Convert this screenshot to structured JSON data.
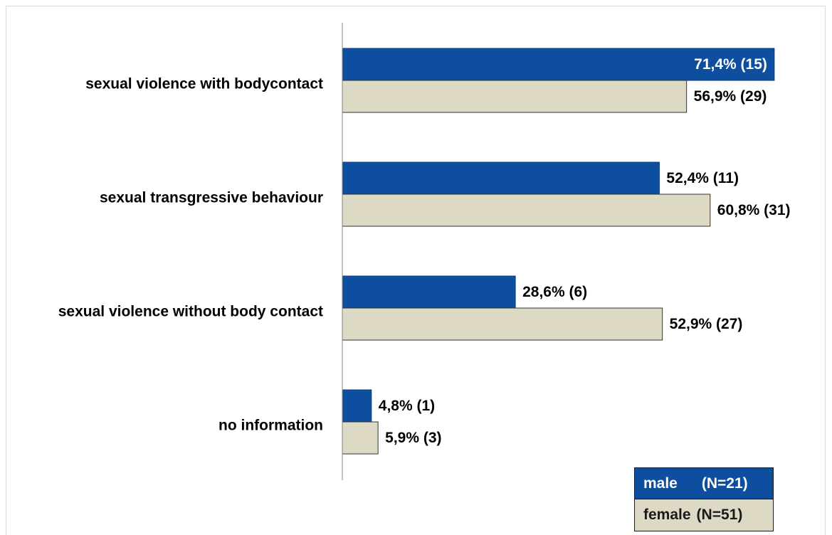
{
  "chart_data": {
    "type": "bar",
    "orientation": "horizontal",
    "categories": [
      "sexual violence with bodycontact",
      "sexual transgressive behaviour",
      "sexual violence without body contact",
      "no information"
    ],
    "series": [
      {
        "name": "male",
        "n_label": "(N=21)",
        "values": [
          71.4,
          52.4,
          28.6,
          4.8
        ],
        "labels": [
          "71,4% (15)",
          "52,4% (11)",
          "28,6% (6)",
          "4,8% (1)"
        ],
        "color": "#0d4f9e"
      },
      {
        "name": "female",
        "n_label": "(N=51)",
        "values": [
          56.9,
          60.8,
          52.9,
          5.9
        ],
        "labels": [
          "56,9% (29)",
          "60,8% (31)",
          "52,9% (27)",
          "5,9% (3)"
        ],
        "color": "#ddd9c4"
      }
    ],
    "xlim": [
      0,
      100
    ],
    "grid": false,
    "legend_position": "bottom-right",
    "title": "",
    "xlabel": "",
    "ylabel": ""
  }
}
